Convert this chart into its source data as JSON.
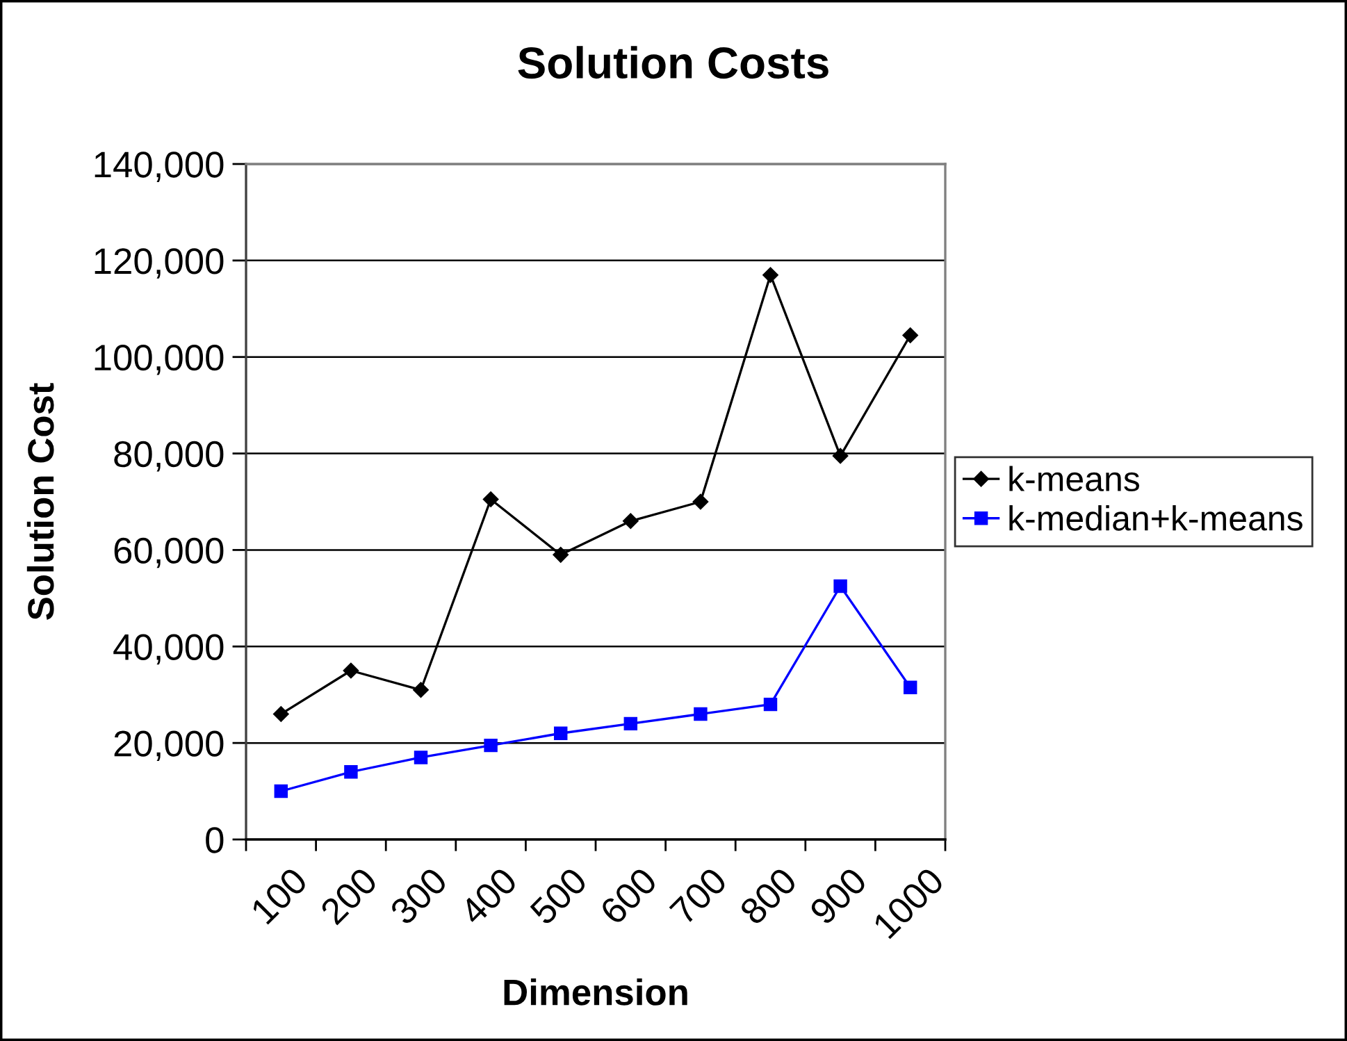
{
  "chart_data": {
    "type": "line",
    "title": "Solution Costs",
    "xlabel": "Dimension",
    "ylabel": "Solution Cost",
    "categories": [
      "100",
      "200",
      "300",
      "400",
      "500",
      "600",
      "700",
      "800",
      "900",
      "1000"
    ],
    "series": [
      {
        "name": "k-means",
        "color": "#000000",
        "marker": "diamond",
        "values": [
          26000,
          35000,
          31000,
          70500,
          59000,
          66000,
          70000,
          117000,
          79500,
          104500
        ]
      },
      {
        "name": "k-median+k-means",
        "color": "#0000ff",
        "marker": "square",
        "values": [
          10000,
          14000,
          17000,
          19500,
          22000,
          24000,
          26000,
          28000,
          52500,
          31500
        ]
      }
    ],
    "ylim": [
      0,
      140000
    ],
    "yticks": [
      0,
      {
        "value": 20000,
        "label": "20,000"
      },
      {
        "value": 40000,
        "label": "40,000"
      },
      {
        "value": 60000,
        "label": "60,000"
      },
      {
        "value": 80000,
        "label": "80,000"
      },
      {
        "value": 100000,
        "label": "100,000"
      },
      {
        "value": 120000,
        "label": "120,000"
      },
      {
        "value": 140000,
        "label": "140,000"
      }
    ],
    "grid": "y",
    "legend": "right"
  }
}
